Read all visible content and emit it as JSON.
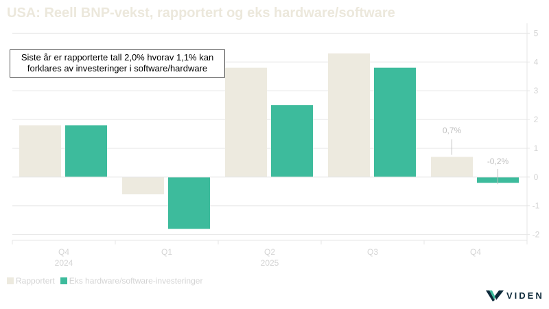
{
  "title": "USA: Reell BNP-vekst, rapportert og eks hardware/software",
  "annotation": {
    "line1": "Siste år er rapporterte tall 2,0% hvorav 1,1% kan",
    "line2": "forklares av investeringer i software/hardware"
  },
  "logo_text": "VIDEN",
  "colors": {
    "title": "#ECE8DC",
    "reported": "#EDEADF",
    "ex": "#3DBB9C",
    "axis_text": "#D4D4D4",
    "grid": "#E6E6E6",
    "callout": "#BFBFBF",
    "logo_accent": "#3DBB9C",
    "logo_dark": "#0E2A3A"
  },
  "chart_data": {
    "type": "bar",
    "categories": [
      "Q4",
      "Q1",
      "Q2",
      "Q3",
      "Q4"
    ],
    "year_labels": [
      {
        "text": "2024",
        "index": 0
      },
      {
        "text": "2025",
        "index": 2
      }
    ],
    "series": [
      {
        "name": "Rapportert",
        "values": [
          1.8,
          -0.6,
          3.8,
          4.3,
          0.7
        ]
      },
      {
        "name": "Eks hardware/software-investeringer",
        "values": [
          1.8,
          -1.8,
          2.5,
          3.8,
          -0.2
        ]
      }
    ],
    "data_labels": [
      {
        "series": 0,
        "index": 4,
        "text": "0,7%"
      },
      {
        "series": 1,
        "index": 4,
        "text": "-0,2%"
      }
    ],
    "ylim": [
      -2.2,
      5.2
    ],
    "yticks": [
      -2,
      -1,
      0,
      1,
      2,
      3,
      4,
      5
    ],
    "grid": true,
    "legend_position": "bottom-left",
    "y_axis_side": "right"
  }
}
